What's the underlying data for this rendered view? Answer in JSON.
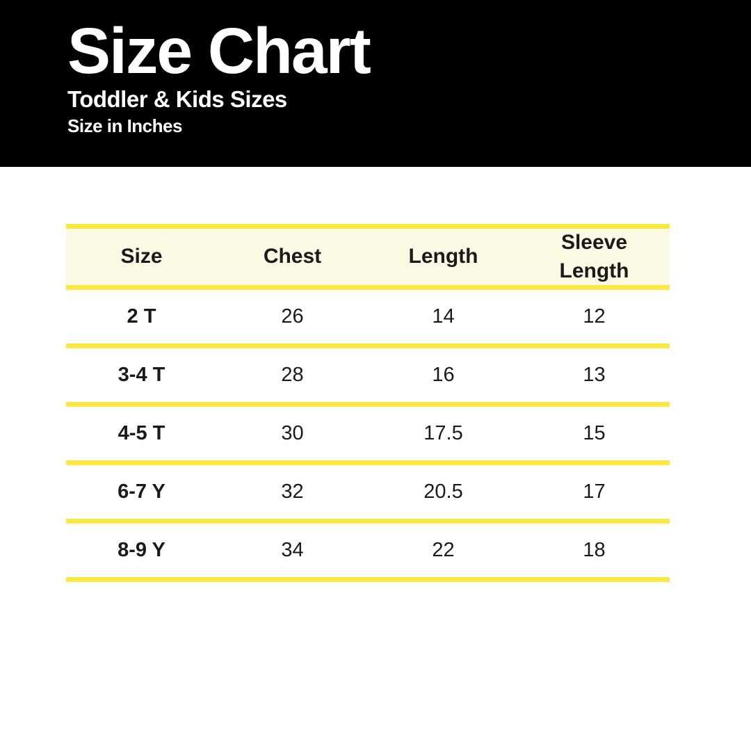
{
  "banner": {
    "title": "Size Chart",
    "subtitle": "Toddler & Kids Sizes",
    "note": "Size in Inches"
  },
  "colors": {
    "banner_bg": "#000000",
    "banner_text": "#FFFFFF",
    "accent_yellow": "#FAE840",
    "header_row_bg": "#FCFAE5",
    "table_text": "#1A1A1A"
  },
  "chart_data": {
    "type": "table",
    "title": "Size Chart",
    "subtitle": "Toddler & Kids Sizes",
    "units": "Size in Inches",
    "columns": [
      "Size",
      "Chest",
      "Length",
      "Sleeve Length"
    ],
    "rows": [
      [
        "2 T",
        26,
        14,
        12
      ],
      [
        "3-4 T",
        28,
        16,
        13
      ],
      [
        "4-5 T",
        30,
        17.5,
        15
      ],
      [
        "6-7 Y",
        32,
        20.5,
        17
      ],
      [
        "8-9 Y",
        34,
        22,
        18
      ]
    ]
  }
}
